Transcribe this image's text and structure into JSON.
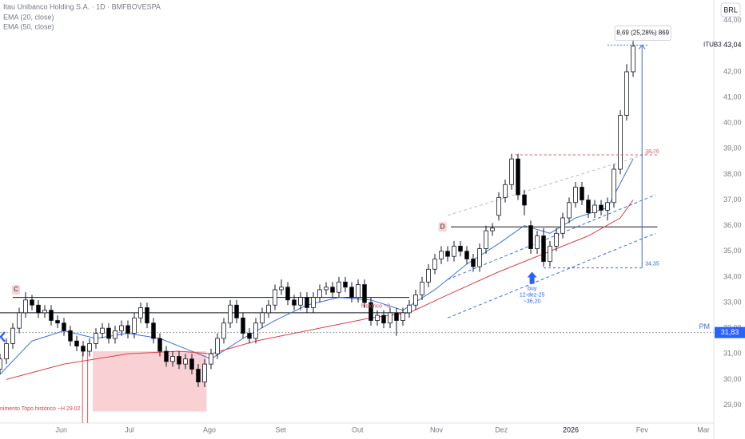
{
  "chart_data": {
    "type": "candlestick",
    "title": "Itau Unibanco Holding S.A. · 1D · BMFBOVESPA",
    "indicators": [
      "EMA (20, close)",
      "EMA (50, close)"
    ],
    "currency": "BRL",
    "symbol": "ITUB3",
    "last_price": {
      "value": 43.04,
      "label": "43,04"
    },
    "pm": {
      "name": "PM",
      "value": 31.83,
      "label": "31,83"
    },
    "up_color": "#ffffff",
    "down_color": "#000000",
    "candles": [
      [
        30.4,
        31.0,
        30.2,
        30.8
      ],
      [
        30.8,
        31.6,
        30.6,
        31.4
      ],
      [
        31.4,
        32.2,
        31.2,
        32.0
      ],
      [
        32.0,
        32.8,
        31.8,
        32.6
      ],
      [
        32.6,
        33.4,
        32.4,
        33.1
      ],
      [
        33.1,
        33.3,
        32.7,
        32.9
      ],
      [
        32.9,
        33.1,
        32.4,
        32.6
      ],
      [
        32.6,
        32.9,
        32.4,
        32.7
      ],
      [
        32.7,
        32.9,
        32.1,
        32.3
      ],
      [
        32.3,
        32.5,
        32.0,
        32.2
      ],
      [
        32.2,
        32.4,
        31.7,
        31.9
      ],
      [
        31.9,
        32.1,
        31.3,
        31.5
      ],
      [
        31.5,
        31.7,
        31.1,
        31.3
      ],
      [
        31.3,
        31.5,
        30.9,
        31.1
      ],
      [
        31.1,
        31.6,
        30.9,
        31.4
      ],
      [
        31.4,
        32.0,
        31.2,
        31.8
      ],
      [
        31.8,
        32.2,
        31.6,
        32.0
      ],
      [
        32.0,
        32.2,
        31.4,
        31.6
      ],
      [
        31.6,
        32.1,
        31.4,
        31.9
      ],
      [
        31.9,
        32.3,
        31.7,
        32.1
      ],
      [
        32.1,
        32.3,
        31.6,
        31.8
      ],
      [
        31.8,
        32.6,
        31.6,
        32.4
      ],
      [
        32.4,
        33.0,
        32.2,
        32.8
      ],
      [
        32.8,
        33.0,
        32.0,
        32.2
      ],
      [
        32.2,
        32.4,
        31.4,
        31.6
      ],
      [
        31.6,
        31.8,
        30.9,
        31.1
      ],
      [
        31.1,
        31.3,
        30.5,
        30.7
      ],
      [
        30.7,
        31.1,
        30.5,
        30.9
      ],
      [
        30.9,
        31.1,
        30.4,
        30.6
      ],
      [
        30.6,
        31.0,
        30.4,
        30.8
      ],
      [
        30.8,
        31.0,
        30.2,
        30.4
      ],
      [
        30.4,
        30.6,
        29.7,
        29.9
      ],
      [
        29.9,
        30.8,
        29.7,
        30.6
      ],
      [
        30.6,
        31.2,
        30.4,
        31.0
      ],
      [
        31.0,
        31.8,
        30.8,
        31.6
      ],
      [
        31.6,
        32.4,
        31.4,
        32.2
      ],
      [
        32.2,
        33.1,
        32.0,
        32.9
      ],
      [
        32.9,
        33.1,
        32.2,
        32.4
      ],
      [
        32.4,
        32.6,
        31.6,
        31.8
      ],
      [
        31.8,
        32.0,
        31.4,
        31.6
      ],
      [
        31.6,
        32.4,
        31.4,
        32.2
      ],
      [
        32.2,
        32.8,
        32.0,
        32.6
      ],
      [
        32.6,
        33.1,
        32.4,
        32.9
      ],
      [
        32.9,
        33.7,
        32.7,
        33.5
      ],
      [
        33.5,
        33.9,
        33.3,
        33.6
      ],
      [
        33.6,
        33.8,
        32.9,
        33.1
      ],
      [
        33.1,
        33.3,
        32.7,
        32.9
      ],
      [
        32.9,
        33.4,
        32.7,
        33.2
      ],
      [
        33.2,
        33.4,
        32.6,
        32.8
      ],
      [
        32.8,
        33.4,
        32.6,
        33.2
      ],
      [
        33.2,
        33.7,
        33.0,
        33.5
      ],
      [
        33.5,
        33.8,
        33.3,
        33.6
      ],
      [
        33.6,
        33.8,
        33.2,
        33.4
      ],
      [
        33.4,
        34.0,
        33.2,
        33.8
      ],
      [
        33.8,
        34.0,
        33.4,
        33.6
      ],
      [
        33.6,
        33.8,
        33.0,
        33.2
      ],
      [
        33.2,
        33.9,
        33.0,
        33.7
      ],
      [
        33.7,
        33.9,
        32.8,
        33.0
      ],
      [
        33.0,
        33.2,
        32.1,
        32.3
      ],
      [
        32.3,
        32.7,
        32.1,
        32.5
      ],
      [
        32.5,
        32.7,
        32.0,
        32.2
      ],
      [
        32.2,
        32.8,
        32.0,
        32.6
      ],
      [
        32.6,
        32.8,
        31.7,
        32.3
      ],
      [
        32.3,
        32.8,
        32.1,
        32.6
      ],
      [
        32.6,
        33.1,
        32.4,
        32.9
      ],
      [
        32.9,
        33.5,
        32.7,
        33.3
      ],
      [
        33.3,
        34.0,
        33.1,
        33.8
      ],
      [
        33.8,
        34.5,
        33.6,
        34.3
      ],
      [
        34.3,
        34.9,
        34.1,
        34.7
      ],
      [
        34.7,
        35.2,
        34.5,
        35.0
      ],
      [
        35.0,
        35.2,
        34.6,
        34.8
      ],
      [
        34.8,
        35.4,
        34.6,
        35.2
      ],
      [
        35.2,
        35.4,
        34.8,
        35.0
      ],
      [
        35.0,
        35.2,
        34.5,
        34.7
      ],
      [
        34.7,
        34.9,
        34.2,
        34.4
      ],
      [
        34.4,
        35.3,
        34.2,
        35.1
      ],
      [
        35.1,
        36.0,
        34.9,
        35.8
      ],
      [
        35.8,
        36.1,
        35.6,
        35.9
      ],
      [
        36.4,
        37.3,
        36.2,
        37.1
      ],
      [
        37.1,
        37.8,
        36.9,
        37.6
      ],
      [
        37.6,
        38.8,
        37.4,
        38.6
      ],
      [
        38.6,
        38.8,
        37.0,
        37.2
      ],
      [
        37.2,
        37.4,
        36.4,
        36.8
      ],
      [
        36.0,
        36.2,
        34.9,
        35.1
      ],
      [
        35.1,
        35.8,
        34.9,
        35.6
      ],
      [
        35.6,
        35.9,
        34.4,
        34.6
      ],
      [
        34.6,
        35.4,
        34.4,
        35.2
      ],
      [
        35.2,
        35.9,
        35.0,
        35.7
      ],
      [
        35.7,
        36.5,
        35.5,
        36.3
      ],
      [
        36.3,
        37.1,
        36.1,
        36.9
      ],
      [
        36.9,
        37.7,
        36.7,
        37.5
      ],
      [
        37.5,
        37.7,
        36.8,
        37.0
      ],
      [
        37.0,
        37.2,
        36.3,
        36.5
      ],
      [
        36.5,
        37.0,
        36.3,
        36.8
      ],
      [
        36.8,
        37.0,
        36.4,
        36.6
      ],
      [
        36.6,
        37.1,
        36.2,
        36.9
      ],
      [
        36.9,
        38.4,
        36.7,
        38.2
      ],
      [
        38.2,
        40.5,
        38.0,
        40.3
      ],
      [
        40.3,
        42.3,
        40.1,
        42.0
      ],
      [
        42.0,
        43.2,
        41.8,
        43.0
      ]
    ],
    "series": [
      {
        "name": "EMA 20",
        "color": "#3d6fd9",
        "x": [
          0,
          5,
          10,
          15,
          20,
          25,
          30,
          33,
          38,
          43,
          48,
          53,
          58,
          63,
          68,
          73,
          78,
          82,
          86,
          90,
          95,
          99
        ],
        "values": [
          30.2,
          31.5,
          31.9,
          31.6,
          31.8,
          31.6,
          31.1,
          30.8,
          31.6,
          32.3,
          32.9,
          33.2,
          33.1,
          32.7,
          33.5,
          34.5,
          35.3,
          36.0,
          35.7,
          36.3,
          36.7,
          38.6
        ]
      },
      {
        "name": "EMA 50",
        "color": "#d9404b",
        "x": [
          1,
          10,
          20,
          28,
          33,
          40,
          50,
          58,
          64,
          70,
          78,
          85,
          92,
          97,
          99
        ],
        "values": [
          30.0,
          30.6,
          31.0,
          31.1,
          31.0,
          31.5,
          32.0,
          32.4,
          32.6,
          33.3,
          34.2,
          34.9,
          35.6,
          36.3,
          37.0
        ]
      }
    ],
    "levels": [
      {
        "value": 33.2,
        "x": [
          2,
          64
        ]
      },
      {
        "value": 32.6,
        "x": [
          0,
          64
        ]
      },
      {
        "value": 35.95,
        "x": [
          70.5,
          102.8
        ]
      }
    ],
    "trendlines": [
      {
        "color": "#b8bcc6",
        "x": [
          70,
          102.5
        ],
        "values": [
          36.4,
          38.9
        ]
      },
      {
        "color": "#3d6fd9",
        "x": [
          70,
          102.5
        ],
        "values": [
          33.9,
          37.2
        ]
      },
      {
        "color": "#3d6fd9",
        "x": [
          70,
          102.5
        ],
        "values": [
          32.4,
          35.7
        ]
      }
    ],
    "markers": [
      {
        "text": "C",
        "x": 2.5,
        "value": 33.5
      },
      {
        "text": "D",
        "x": 69.2,
        "value": 35.95
      }
    ],
    "resistance": {
      "value": 38.76,
      "label": "38,76",
      "x": [
        80.6,
        100.4
      ]
    },
    "measure": {
      "x": 100.4,
      "start": {
        "value": 34.35,
        "label": "34,35"
      },
      "end": 43.04,
      "label": "8,69 (25,28%) 869",
      "x_start": 85
    },
    "buy": {
      "x": 83.2,
      "value": 34.2,
      "lines": [
        "buy",
        "12-dez-25",
        "~36,20"
      ]
    },
    "zone": {
      "x": [
        14.5,
        32.3
      ],
      "values": [
        28.75,
        31.1
      ]
    },
    "notes": [
      {
        "text": "nimento Topo histórico ~H 29.02",
        "x": 0,
        "value": 28.85
      },
      {
        "text": "histórico ~3",
        "x": 56.5,
        "value": 32.85
      }
    ],
    "ylim": [
      28.3,
      44.8
    ],
    "yticks": [
      {
        "value": 29,
        "label": "29,00"
      },
      {
        "value": 30,
        "label": "30,00"
      },
      {
        "value": 31,
        "label": "31,00"
      },
      {
        "value": 32,
        "label": "32,00"
      },
      {
        "value": 33,
        "label": "33,00"
      },
      {
        "value": 34,
        "label": "34,00"
      },
      {
        "value": 35,
        "label": "35,00"
      },
      {
        "value": 36,
        "label": "36,00"
      },
      {
        "value": 37,
        "label": "37,00"
      },
      {
        "value": 38,
        "label": "38,00"
      },
      {
        "value": 39,
        "label": "39,00"
      },
      {
        "value": 40,
        "label": "40,00"
      },
      {
        "value": 41,
        "label": "41,00"
      },
      {
        "value": 42,
        "label": "42,00"
      },
      {
        "value": 44,
        "label": "44,00"
      }
    ],
    "xlim": [
      0,
      110
    ],
    "xticks": [
      {
        "value": 9.6,
        "label": "Jun"
      },
      {
        "value": 20.25,
        "label": "Jul"
      },
      {
        "value": 32.75,
        "label": "Ago"
      },
      {
        "value": 43.9,
        "label": "Set"
      },
      {
        "value": 55.9,
        "label": "Out"
      },
      {
        "value": 68.25,
        "label": "Nov"
      },
      {
        "value": 78.4,
        "label": "Dez"
      },
      {
        "value": 89.25,
        "label": "2026"
      },
      {
        "value": 100.4,
        "label": "Fev"
      },
      {
        "value": 110,
        "label": "Mar"
      }
    ]
  }
}
